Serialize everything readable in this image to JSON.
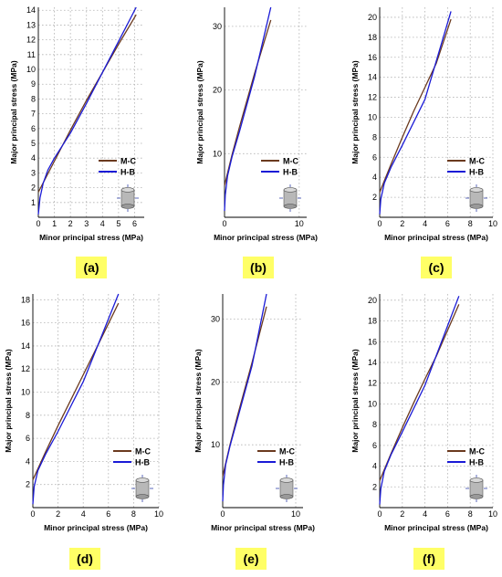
{
  "colors": {
    "mc": "#6b3a1f",
    "hb": "#1a1ad6",
    "tag_bg": "#ffff66"
  },
  "chart_data": [
    {
      "type": "line",
      "tag": "(a)",
      "xlabel": "Minor principal stress (MPa)",
      "ylabel": "Major principal stress (MPa)",
      "xlim": [
        0,
        6.6
      ],
      "ylim": [
        0,
        14.2
      ],
      "xticks": [
        0,
        1,
        2,
        3,
        4,
        5,
        6
      ],
      "yticks": [
        1,
        2,
        3,
        4,
        5,
        6,
        7,
        8,
        9,
        10,
        11,
        12,
        13,
        14
      ],
      "grid": true,
      "legend_position": "bottom-right",
      "series": [
        {
          "name": "M-C",
          "x": [
            0,
            1,
            2,
            3,
            4,
            5,
            6.1
          ],
          "y": [
            1.7,
            3.8,
            5.9,
            7.9,
            9.8,
            11.7,
            13.7
          ]
        },
        {
          "name": "H-B",
          "x": [
            0,
            0.1,
            0.3,
            0.6,
            1,
            2,
            3,
            4,
            5,
            6.1
          ],
          "y": [
            0.2,
            1.3,
            2.3,
            3.2,
            4.0,
            5.7,
            7.7,
            9.8,
            11.9,
            14.2
          ]
        }
      ]
    },
    {
      "type": "line",
      "tag": "(b)",
      "xlabel": "Minor principal stress (MPa)",
      "ylabel": "Major principal stress (MPa)",
      "xlim": [
        0,
        11
      ],
      "ylim": [
        0,
        33
      ],
      "xticks": [
        0,
        10
      ],
      "yticks": [
        10,
        20,
        30
      ],
      "grid": true,
      "legend_position": "bottom-right",
      "series": [
        {
          "name": "M-C",
          "x": [
            0,
            1,
            2,
            4,
            6.2
          ],
          "y": [
            5.0,
            9.8,
            14.2,
            22.5,
            31.0
          ]
        },
        {
          "name": "H-B",
          "x": [
            0,
            0.1,
            0.4,
            1,
            2,
            4,
            6.2
          ],
          "y": [
            1.0,
            3.5,
            6.5,
            9.5,
            13.5,
            22.0,
            33.0
          ]
        }
      ]
    },
    {
      "type": "line",
      "tag": "(c)",
      "xlabel": "Minor principal stress (MPa)",
      "ylabel": "Major principal stress (MPa)",
      "xlim": [
        0,
        10
      ],
      "ylim": [
        0,
        21
      ],
      "xticks": [
        0,
        2,
        4,
        6,
        8,
        10
      ],
      "yticks": [
        2,
        4,
        6,
        8,
        10,
        12,
        14,
        16,
        18,
        20
      ],
      "grid": true,
      "legend_position": "bottom-right",
      "series": [
        {
          "name": "M-C",
          "x": [
            0,
            1,
            2,
            3,
            4,
            5,
            6.3
          ],
          "y": [
            2.5,
            5.3,
            8.0,
            10.6,
            13.0,
            15.4,
            19.8
          ]
        },
        {
          "name": "H-B",
          "x": [
            0,
            0.1,
            0.4,
            1,
            2,
            4,
            6.3
          ],
          "y": [
            0.3,
            1.8,
            3.4,
            5.0,
            7.2,
            11.8,
            20.6
          ]
        }
      ]
    },
    {
      "type": "line",
      "tag": "(d)",
      "xlabel": "Minor principal stress (MPa)",
      "ylabel": "Major principal stress (MPa)",
      "xlim": [
        0,
        10
      ],
      "ylim": [
        0,
        18.5
      ],
      "xticks": [
        0,
        2,
        4,
        6,
        8,
        10
      ],
      "yticks": [
        2,
        4,
        6,
        8,
        10,
        12,
        14,
        16,
        18
      ],
      "grid": true,
      "legend_position": "bottom-right",
      "series": [
        {
          "name": "M-C",
          "x": [
            0,
            1,
            2,
            3,
            4,
            5,
            6.8
          ],
          "y": [
            2.4,
            4.8,
            7.1,
            9.3,
            11.5,
            13.7,
            17.7
          ]
        },
        {
          "name": "H-B",
          "x": [
            0,
            0.1,
            0.4,
            1,
            2,
            4,
            6.8
          ],
          "y": [
            0.3,
            1.8,
            3.2,
            4.6,
            6.6,
            10.9,
            18.5
          ]
        }
      ]
    },
    {
      "type": "line",
      "tag": "(e)",
      "xlabel": "Minor principal stress (MPa)",
      "ylabel": "Major principal stress (MPa)",
      "xlim": [
        0,
        11
      ],
      "ylim": [
        0,
        34
      ],
      "xticks": [
        0,
        10
      ],
      "yticks": [
        10,
        20,
        30
      ],
      "grid": true,
      "legend_position": "bottom-right",
      "series": [
        {
          "name": "M-C",
          "x": [
            0,
            1,
            2,
            4,
            6.0
          ],
          "y": [
            5.0,
            10.0,
            14.5,
            23.0,
            32.0
          ]
        },
        {
          "name": "H-B",
          "x": [
            0,
            0.1,
            0.4,
            1,
            2,
            4,
            6.0
          ],
          "y": [
            1.0,
            3.6,
            6.8,
            9.8,
            14.0,
            22.5,
            34.0
          ]
        }
      ]
    },
    {
      "type": "line",
      "tag": "(f)",
      "xlabel": "Minor principal stress (MPa)",
      "ylabel": "Major principal stress (MPa)",
      "xlim": [
        0,
        10
      ],
      "ylim": [
        0,
        20.6
      ],
      "xticks": [
        0,
        2,
        4,
        6,
        8,
        10
      ],
      "yticks": [
        2,
        4,
        6,
        8,
        10,
        12,
        14,
        16,
        18,
        20
      ],
      "grid": true,
      "legend_position": "bottom-right",
      "series": [
        {
          "name": "M-C",
          "x": [
            0,
            1,
            2,
            3,
            4,
            5,
            7.0
          ],
          "y": [
            2.6,
            5.2,
            7.7,
            10.1,
            12.4,
            14.6,
            19.6
          ]
        },
        {
          "name": "H-B",
          "x": [
            0,
            0.1,
            0.4,
            1,
            2,
            4,
            7.0
          ],
          "y": [
            0.3,
            1.8,
            3.5,
            5.1,
            7.3,
            11.8,
            20.4
          ]
        }
      ]
    }
  ]
}
